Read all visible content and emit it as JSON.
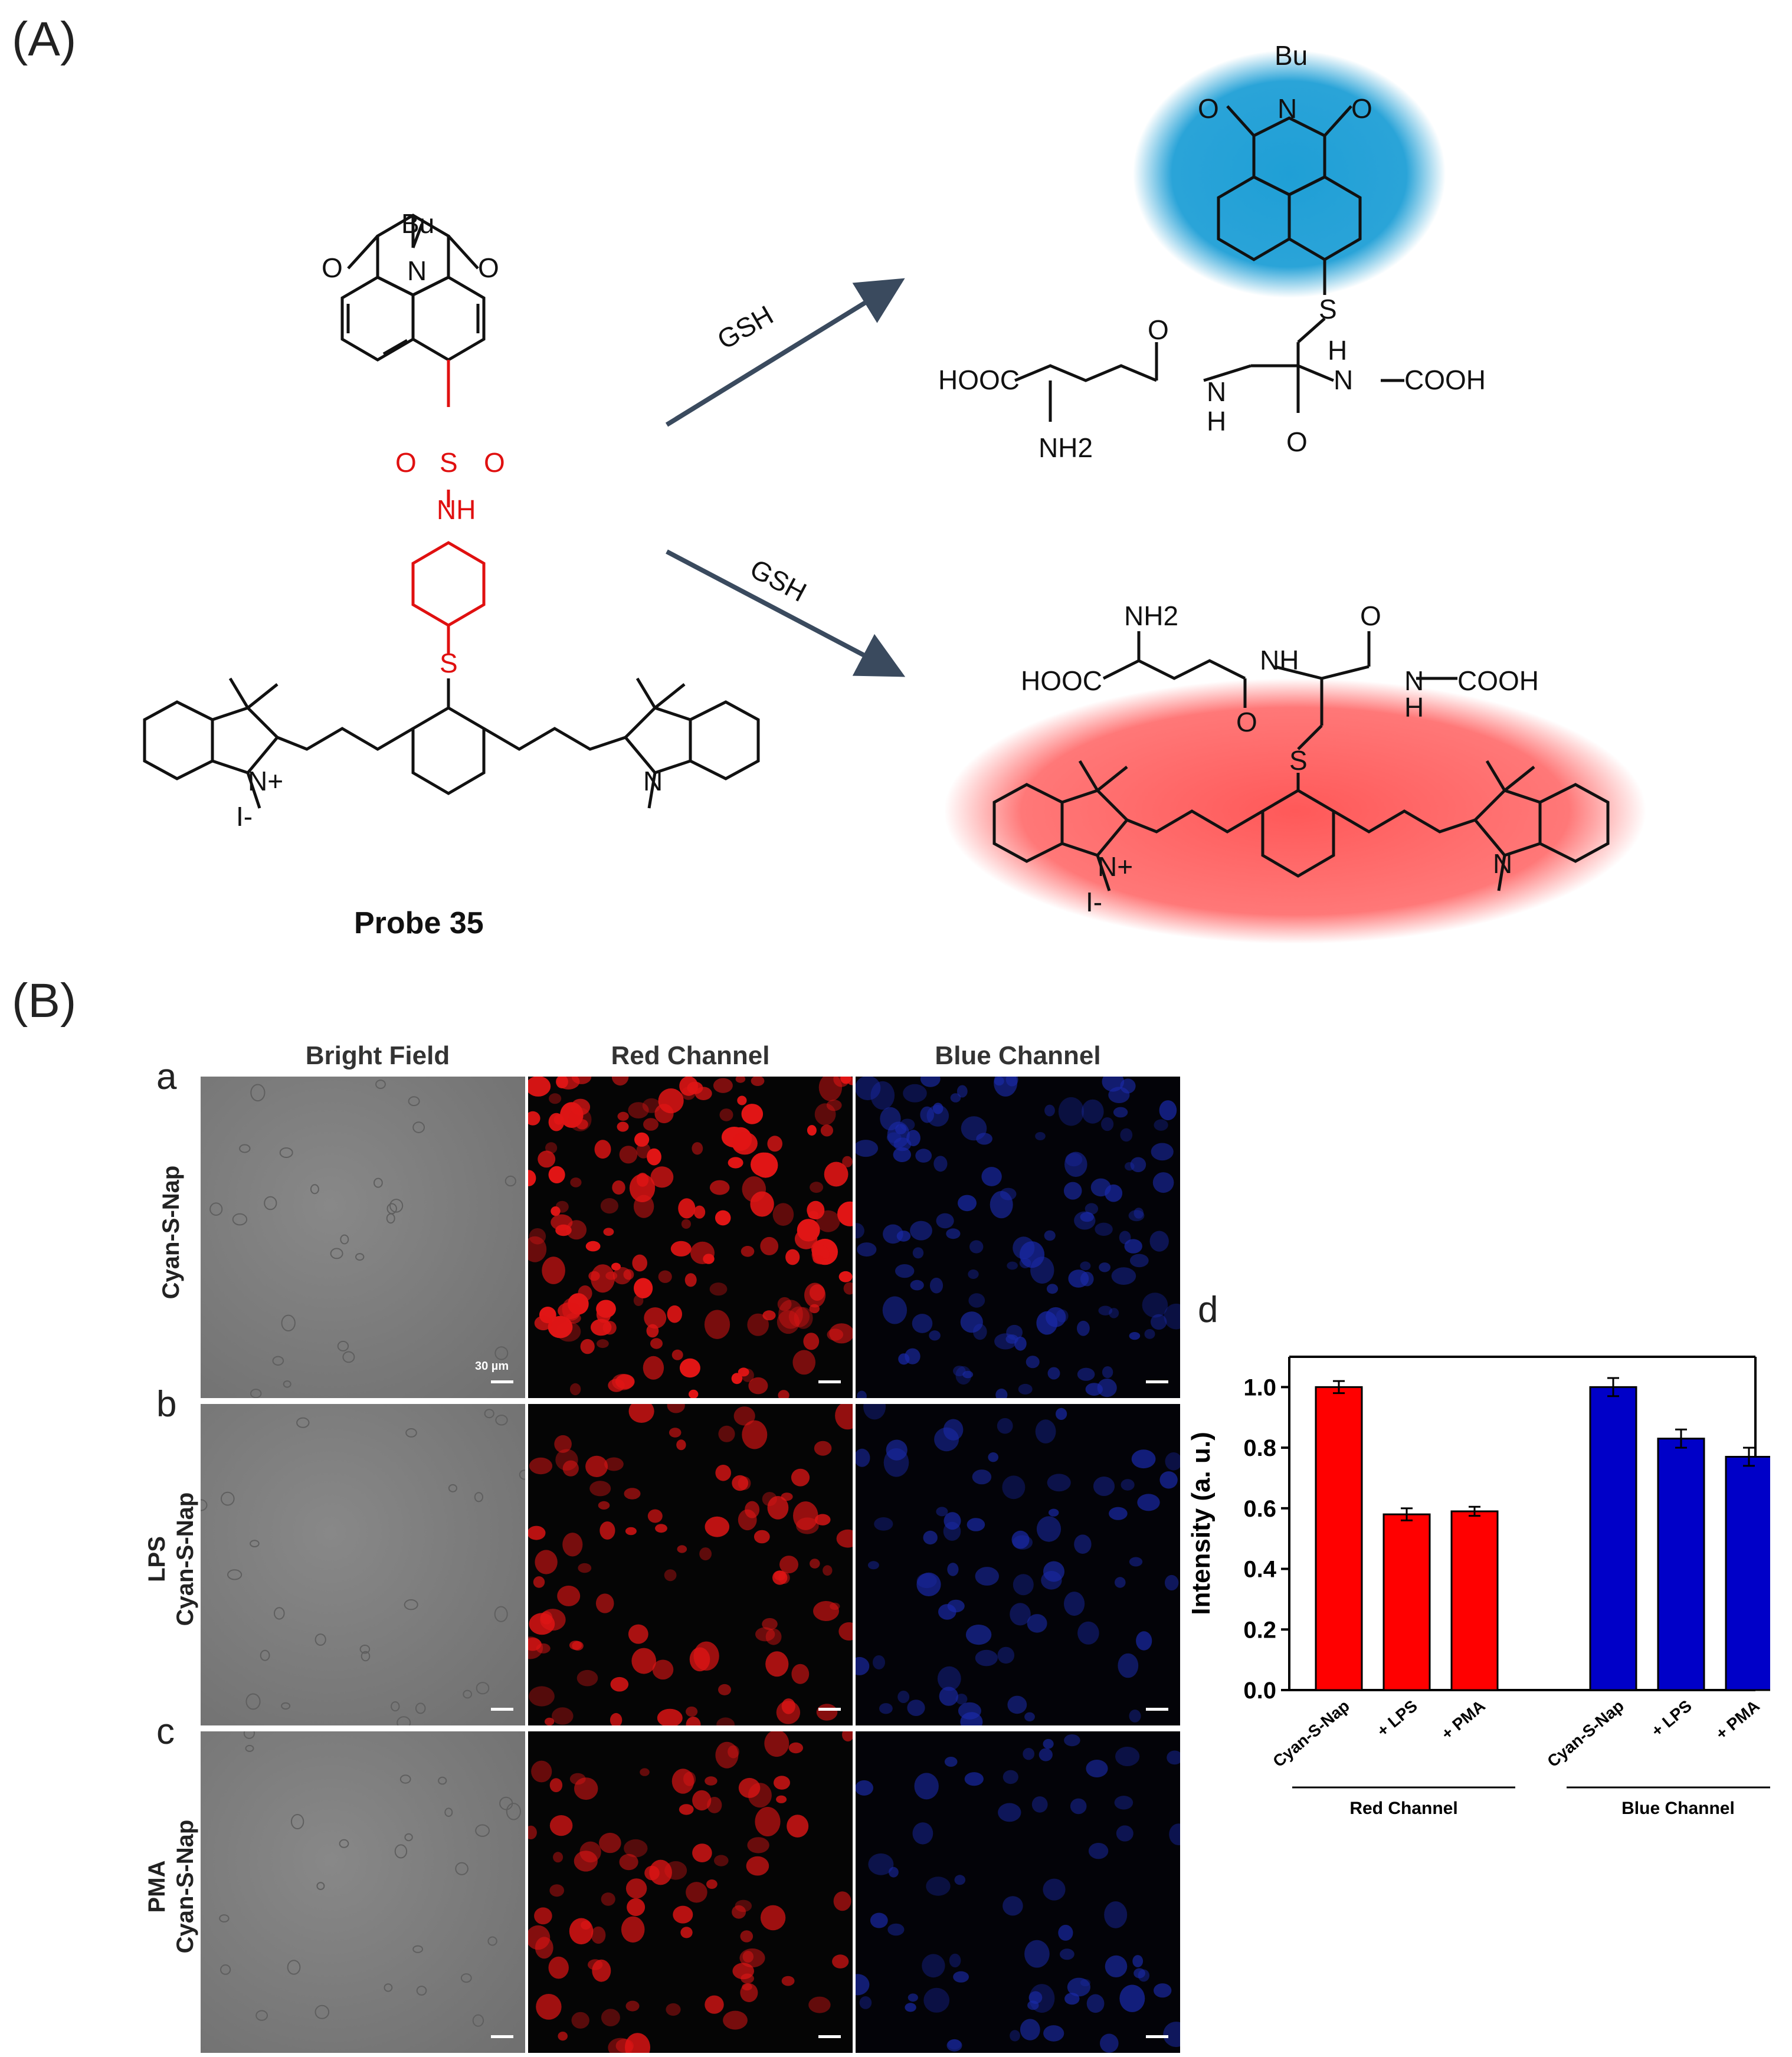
{
  "panel_A": {
    "label": "(A)",
    "probe_label": "Probe 35",
    "arrow_top_label": "GSH",
    "arrow_bottom_label": "GSH",
    "atoms": {
      "bu": "Bu",
      "o": "O",
      "n": "N",
      "s": "S",
      "nh": "NH",
      "h": "H",
      "hooc": "HOOC",
      "cooh": "COOH",
      "nh2": "NH2",
      "iodide": "I-",
      "n_plus": "N+"
    },
    "colors": {
      "linker": "#e01010",
      "blue_glow": "#1f9fd6",
      "red_glow": "#ff5a5a"
    }
  },
  "panel_B": {
    "label": "(B)",
    "column_titles": [
      "Bright Field",
      "Red Channel",
      "Blue Channel"
    ],
    "rows": [
      {
        "letter": "a",
        "title_lines": [
          "Cyan-S-Nap"
        ]
      },
      {
        "letter": "b",
        "title_lines": [
          "LPS",
          "Cyan-S-Nap"
        ]
      },
      {
        "letter": "c",
        "title_lines": [
          "PMA",
          "Cyan-S-Nap"
        ]
      }
    ],
    "scale_bar_label": "30 µm"
  },
  "chart_label": "d",
  "chart_data": {
    "type": "bar",
    "ylabel": "Intensity (a. u.)",
    "ylim": [
      0.0,
      1.1
    ],
    "yticks": [
      "0.0",
      "0.2",
      "0.4",
      "0.6",
      "0.8",
      "1.0"
    ],
    "groups": [
      {
        "name": "Red Channel",
        "color": "#ff0000",
        "categories": [
          "Cyan-S-Nap",
          "+ LPS",
          "+ PMA"
        ],
        "values": [
          1.0,
          0.58,
          0.59
        ],
        "errors": [
          0.02,
          0.02,
          0.015
        ]
      },
      {
        "name": "Blue Channel",
        "color": "#0000c8",
        "categories": [
          "Cyan-S-Nap",
          "+ LPS",
          "+ PMA"
        ],
        "values": [
          1.0,
          0.83,
          0.77
        ],
        "errors": [
          0.03,
          0.03,
          0.03
        ]
      }
    ]
  }
}
